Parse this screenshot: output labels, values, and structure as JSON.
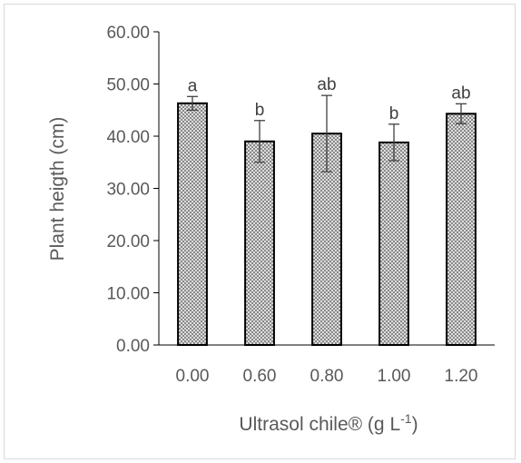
{
  "chart_data": {
    "type": "bar",
    "title": "",
    "xlabel": "Ultrasol chile® (g L",
    "xlabel_superscript": "-1",
    "xlabel_suffix": ")",
    "ylabel": "Plant heigth (cm)",
    "ylim": [
      0,
      60
    ],
    "yticks": [
      "0.00",
      "10.00",
      "20.00",
      "30.00",
      "40.00",
      "50.00",
      "60.00"
    ],
    "categories": [
      "0.00",
      "0.60",
      "0.80",
      "1.00",
      "1.20"
    ],
    "values": [
      46.3,
      39.0,
      40.5,
      38.8,
      44.3
    ],
    "errors": [
      1.3,
      4.0,
      7.3,
      3.5,
      1.9
    ],
    "significance": [
      "a",
      "b",
      "ab",
      "b",
      "ab"
    ],
    "bar_pattern": "crosshatch",
    "bar_fill_color": "#bfbfbf",
    "bar_edge_color": "#000000",
    "grid": false,
    "legend": "none"
  }
}
